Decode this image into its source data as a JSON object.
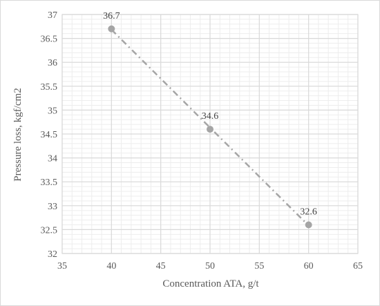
{
  "chart_data": {
    "type": "scatter",
    "title": "",
    "xlabel": "Concentration ATA, g/t",
    "ylabel": "Pressure loss, kgf/cm2",
    "xlim": [
      35,
      65
    ],
    "ylim": [
      32,
      37
    ],
    "x_ticks": [
      "35",
      "40",
      "45",
      "50",
      "55",
      "60",
      "65"
    ],
    "y_ticks": [
      "32",
      "32.5",
      "33",
      "33.5",
      "34",
      "34.5",
      "35",
      "35.5",
      "36",
      "36.5",
      "37"
    ],
    "grid": true,
    "trendline": "linear, dash-dot",
    "series": [
      {
        "x": [
          40,
          50,
          60
        ],
        "y": [
          36.7,
          34.6,
          32.6
        ],
        "labels": [
          "36.7",
          "34.6",
          "32.6"
        ]
      }
    ],
    "colors": {
      "marker": "#a5a5a5",
      "trendline": "#a5a5a5",
      "major_grid": "#d9d9d9",
      "minor_grid": "#ededed",
      "text": "#595959"
    }
  }
}
